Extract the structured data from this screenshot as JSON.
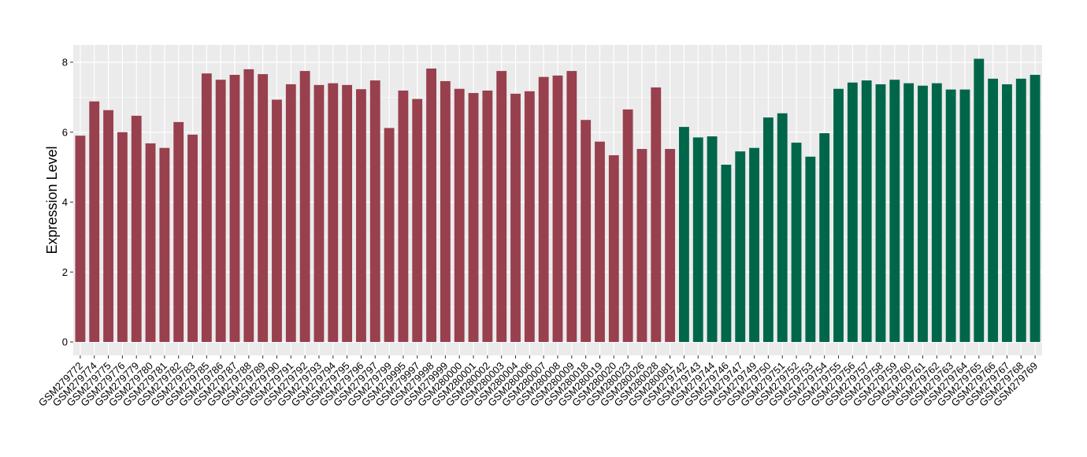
{
  "chart_data": {
    "type": "bar",
    "ylabel": "Expression Level",
    "xlabel": "",
    "ylim": [
      0,
      8.3
    ],
    "yticks": [
      0,
      2,
      4,
      6,
      8
    ],
    "grid": true,
    "legend": "none",
    "colors": {
      "group1": "#98404E",
      "group2": "#00664A",
      "panel": "#EBEBEB",
      "gridline": "#FFFFFF"
    },
    "categories": [
      "GSM279772",
      "GSM279774",
      "GSM279775",
      "GSM279776",
      "GSM279779",
      "GSM279780",
      "GSM279781",
      "GSM279782",
      "GSM279783",
      "GSM279785",
      "GSM279786",
      "GSM279787",
      "GSM279788",
      "GSM279789",
      "GSM279790",
      "GSM279791",
      "GSM279792",
      "GSM279793",
      "GSM279794",
      "GSM279795",
      "GSM279796",
      "GSM279797",
      "GSM279799",
      "GSM279995",
      "GSM279997",
      "GSM279998",
      "GSM279999",
      "GSM280000",
      "GSM280001",
      "GSM280002",
      "GSM280003",
      "GSM280004",
      "GSM280006",
      "GSM280007",
      "GSM280008",
      "GSM280009",
      "GSM280018",
      "GSM280019",
      "GSM280020",
      "GSM280023",
      "GSM280026",
      "GSM280028",
      "GSM280081",
      "GSM279742",
      "GSM279743",
      "GSM279744",
      "GSM279746",
      "GSM279747",
      "GSM279749",
      "GSM279750",
      "GSM279751",
      "GSM279752",
      "GSM279753",
      "GSM279754",
      "GSM279755",
      "GSM279756",
      "GSM279757",
      "GSM279758",
      "GSM279759",
      "GSM279760",
      "GSM279761",
      "GSM279762",
      "GSM279763",
      "GSM279764",
      "GSM279765",
      "GSM279766",
      "GSM279767",
      "GSM279768",
      "GSM279769"
    ],
    "values": [
      5.9,
      6.88,
      6.63,
      6.0,
      6.47,
      5.68,
      5.55,
      6.29,
      5.93,
      7.68,
      7.5,
      7.64,
      7.8,
      7.66,
      6.93,
      7.37,
      7.75,
      7.35,
      7.4,
      7.35,
      7.23,
      7.48,
      6.12,
      7.19,
      6.95,
      7.82,
      7.46,
      7.24,
      7.12,
      7.19,
      7.75,
      7.1,
      7.17,
      7.58,
      7.62,
      7.75,
      6.35,
      5.73,
      5.34,
      6.65,
      5.52,
      7.28,
      5.52,
      6.15,
      5.85,
      5.88,
      5.07,
      5.45,
      5.55,
      6.42,
      6.54,
      5.7,
      5.3,
      5.97,
      7.24,
      7.42,
      7.48,
      7.37,
      7.5,
      7.4,
      7.33,
      7.4,
      7.22,
      7.22,
      8.1,
      7.53,
      7.37,
      7.53,
      7.64
    ],
    "groups": [
      1,
      1,
      1,
      1,
      1,
      1,
      1,
      1,
      1,
      1,
      1,
      1,
      1,
      1,
      1,
      1,
      1,
      1,
      1,
      1,
      1,
      1,
      1,
      1,
      1,
      1,
      1,
      1,
      1,
      1,
      1,
      1,
      1,
      1,
      1,
      1,
      1,
      1,
      1,
      1,
      1,
      1,
      1,
      2,
      2,
      2,
      2,
      2,
      2,
      2,
      2,
      2,
      2,
      2,
      2,
      2,
      2,
      2,
      2,
      2,
      2,
      2,
      2,
      2,
      2,
      2,
      2,
      2,
      2
    ]
  }
}
